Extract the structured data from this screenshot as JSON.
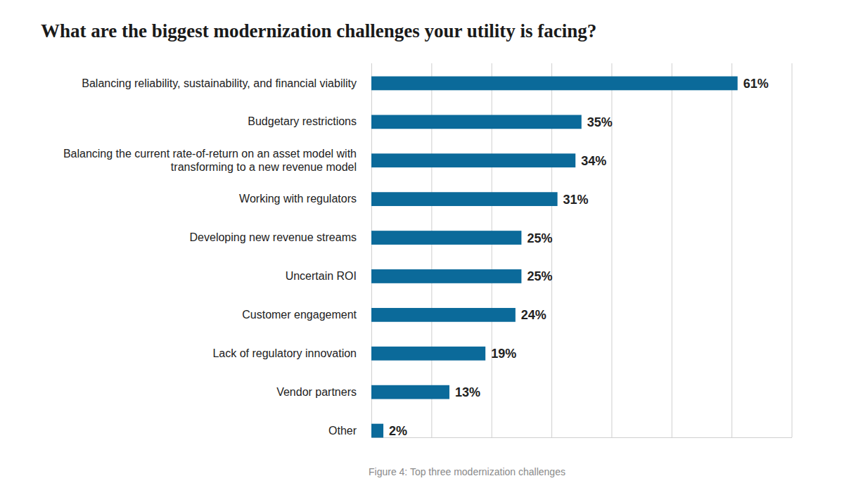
{
  "chart_data": {
    "type": "bar",
    "orientation": "horizontal",
    "title": "What are the biggest modernization challenges your utility is facing?",
    "annotations": [
      "Figure 4: Top three modernization challenges"
    ],
    "categories": [
      "Balancing reliability, sustainability, and financial viability",
      "Budgetary restrictions",
      "Balancing the current rate-of-return on an asset model with\ntransforming to a new revenue model",
      "Working with regulators",
      "Developing new revenue streams",
      "Uncertain ROI",
      "Customer engagement",
      "Lack of regulatory innovation",
      "Vendor partners",
      "Other"
    ],
    "values": [
      61,
      35,
      34,
      31,
      25,
      25,
      24,
      19,
      13,
      2
    ],
    "value_labels": [
      "61%",
      "35%",
      "34%",
      "31%",
      "25%",
      "25%",
      "24%",
      "19%",
      "13%",
      "2%"
    ],
    "data_labels": true,
    "color": "#0b6a9a",
    "xlim": [
      0,
      70
    ],
    "xticks": [
      0,
      10,
      20,
      30,
      40,
      50,
      60,
      70
    ],
    "grid": true,
    "tick_labels": "y"
  }
}
